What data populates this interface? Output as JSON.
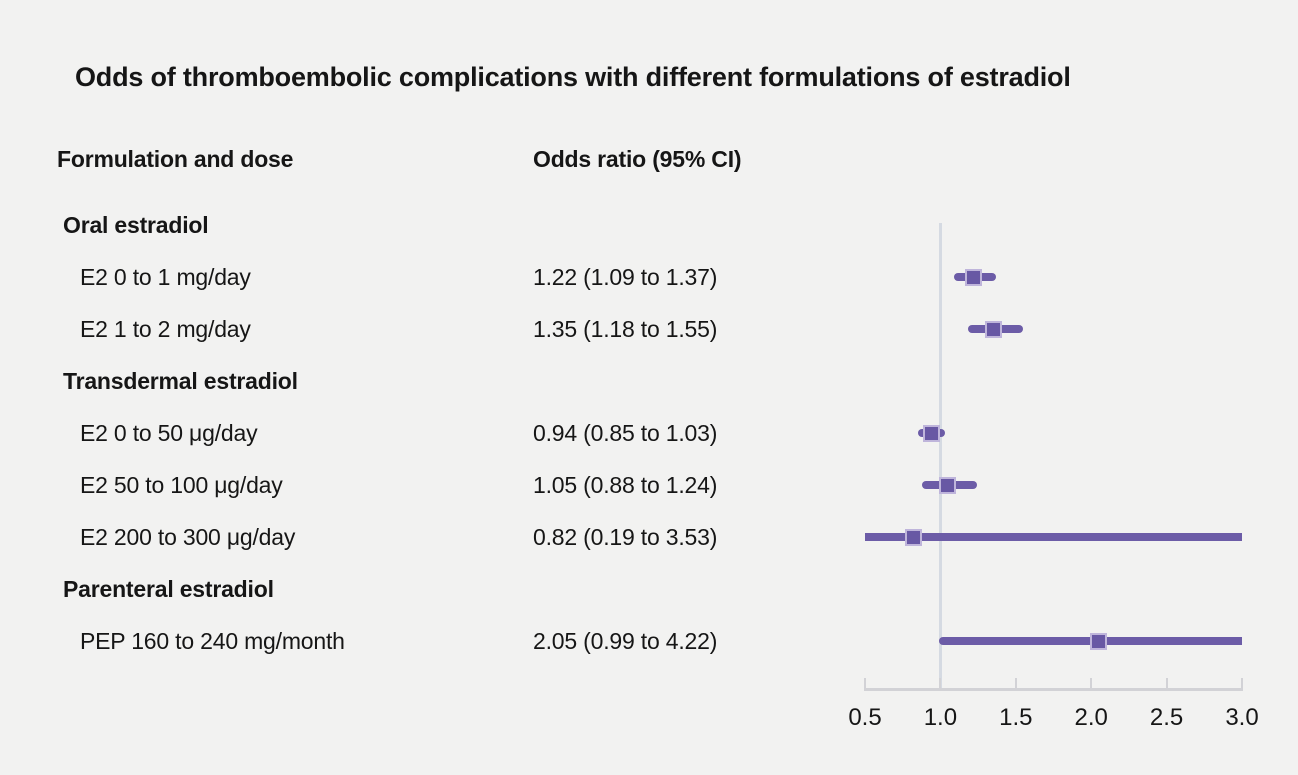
{
  "title": "Odds of thromboembolic complications with different formulations of estradiol",
  "columns": {
    "left": "Formulation and dose",
    "right": "Odds ratio (95% CI)"
  },
  "chart_data": {
    "type": "forest",
    "title": "Odds of thromboembolic complications with different formulations of estradiol",
    "axis": {
      "min": 0.5,
      "max": 3.0,
      "reference": 1.0,
      "ticks": [
        {
          "value": 0.5,
          "label": "0.5"
        },
        {
          "value": 1.0,
          "label": "1.0"
        },
        {
          "value": 1.5,
          "label": "1.5"
        },
        {
          "value": 2.0,
          "label": "2.0"
        },
        {
          "value": 2.5,
          "label": "2.5"
        },
        {
          "value": 3.0,
          "label": "3.0"
        }
      ]
    },
    "rows": [
      {
        "kind": "group",
        "label": "Oral estradiol"
      },
      {
        "kind": "item",
        "label": "E2 0 to 1 mg/day",
        "or_text": "1.22 (1.09 to 1.37)",
        "est": 1.22,
        "lo": 1.09,
        "hi": 1.37
      },
      {
        "kind": "item",
        "label": "E2 1 to 2 mg/day",
        "or_text": "1.35 (1.18 to 1.55)",
        "est": 1.35,
        "lo": 1.18,
        "hi": 1.55
      },
      {
        "kind": "group",
        "label": "Transdermal estradiol"
      },
      {
        "kind": "item",
        "label": "E2 0 to 50 μg/day",
        "or_text": "0.94 (0.85 to 1.03)",
        "est": 0.94,
        "lo": 0.85,
        "hi": 1.03
      },
      {
        "kind": "item",
        "label": "E2 50 to 100 μg/day",
        "or_text": "1.05 (0.88 to 1.24)",
        "est": 1.05,
        "lo": 0.88,
        "hi": 1.24
      },
      {
        "kind": "item",
        "label": "E2 200 to 300 μg/day",
        "or_text": "0.82 (0.19 to 3.53)",
        "est": 0.82,
        "lo": 0.19,
        "hi": 3.53
      },
      {
        "kind": "group",
        "label": "Parenteral estradiol"
      },
      {
        "kind": "item",
        "label": "PEP 160 to 240 mg/month",
        "or_text": "2.05 (0.99 to 4.22)",
        "est": 2.05,
        "lo": 0.99,
        "hi": 4.22
      }
    ]
  },
  "colors": {
    "background": "#f2f2f1",
    "text": "#161616",
    "ci_bar": "#6c5ca7",
    "marker_fill": "#6858a4",
    "marker_border": "#bfb5db",
    "reference_line": "#d5dae2",
    "axis": "#d2d2d6"
  }
}
